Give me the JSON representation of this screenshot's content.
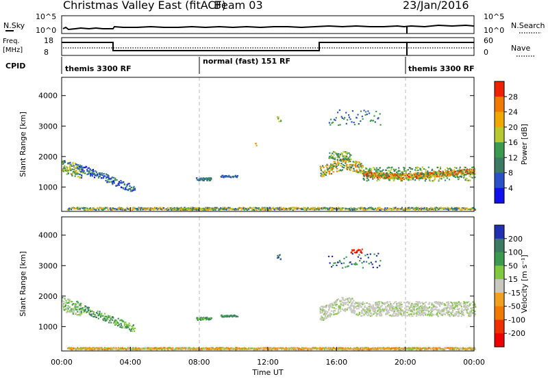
{
  "header": {
    "title": "Christmas Valley East (fitACF)",
    "beam": "Beam 03",
    "date": "23/Jan/2016"
  },
  "noise_panel": {
    "left_label": "N.Sky",
    "right_label": "N.Search",
    "left_ticks": [
      "10^5",
      "10^0"
    ],
    "right_ticks": [
      "10^5",
      "10^0"
    ]
  },
  "freq_panel": {
    "left_label_1": "Freq.",
    "left_label_2": "[MHz]",
    "left_ticks": [
      "18",
      "8"
    ],
    "right_label": "Nave",
    "right_ticks": [
      "60",
      "0"
    ]
  },
  "cpid_panel": {
    "label": "CPID",
    "segments": [
      {
        "start": 0,
        "end": 8,
        "text": "themis 3300 RF"
      },
      {
        "start": 8,
        "end": 20,
        "text": "normal (fast) 151 RF"
      },
      {
        "start": 20,
        "end": 24,
        "text": "themis 3300 RF"
      }
    ]
  },
  "chart_data": [
    {
      "type": "heatmap",
      "name": "power",
      "ylabel": "Slant Range [km]",
      "yticks": [
        "1000",
        "2000",
        "3000",
        "4000"
      ],
      "ylim": [
        200,
        4600
      ],
      "xlim": [
        0,
        24
      ],
      "colorbar_label": "Power [dB]",
      "colorbar_ticks": [
        "4",
        "8",
        "12",
        "16",
        "20",
        "24",
        "28"
      ],
      "colors": [
        "#1010ee",
        "#2a52c8",
        "#3c7a64",
        "#3a9a50",
        "#b8c830",
        "#f0a800",
        "#f07a00",
        "#ee2200"
      ]
    },
    {
      "type": "heatmap",
      "name": "velocity",
      "ylabel": "Slant Range [km]",
      "yticks": [
        "1000",
        "2000",
        "3000",
        "4000"
      ],
      "ylim": [
        200,
        4600
      ],
      "xlim": [
        0,
        24
      ],
      "xlabel": "Time UT",
      "xticks": [
        "00:00",
        "04:00",
        "08:00",
        "12:00",
        "16:00",
        "20:00",
        "00:00"
      ],
      "colorbar_label": "Velocity [m s⁻¹]",
      "colorbar_ticks": [
        "200",
        "100",
        "50",
        "15",
        "-15",
        "-50",
        "-100",
        "-200"
      ],
      "colors": [
        "#2030b0",
        "#3c7a64",
        "#3a9a50",
        "#80c840",
        "#c8c8c0",
        "#f0a020",
        "#f07a00",
        "#ee3000",
        "#ee0000"
      ]
    }
  ]
}
